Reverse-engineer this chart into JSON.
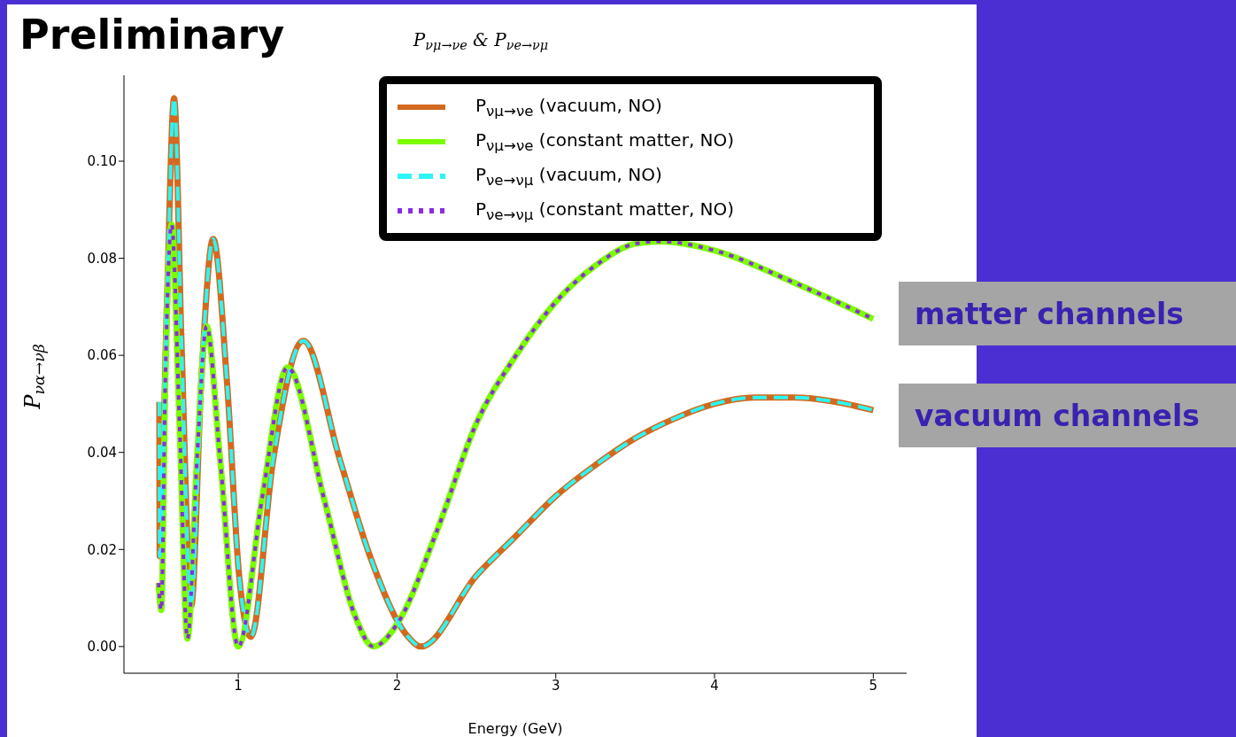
{
  "chart_data": {
    "type": "line",
    "title": "P$_{νμ→νe}$ & P$_{νe→νμ}$",
    "xlabel": "Energy (GeV)",
    "ylabel": "P$_{να→νβ}$",
    "xlim": [
      0.28,
      5.21
    ],
    "xticks": [
      1,
      2,
      3,
      4,
      5
    ],
    "ylim": [
      -0.0055,
      0.1177
    ],
    "yticks": [
      {
        "value": 0,
        "label": "0.00"
      },
      {
        "value": 0.02,
        "label": "0.02"
      },
      {
        "value": 0.04,
        "label": "0.04"
      },
      {
        "value": 0.06,
        "label": "0.06"
      },
      {
        "value": 0.08,
        "label": "0.08"
      },
      {
        "value": 0.1,
        "label": "0.10"
      }
    ],
    "grid": false,
    "legend": "top right",
    "marker": "none",
    "annotations": [
      "Preliminary",
      "matter channels",
      "vacuum channels"
    ],
    "series": [
      {
        "name": "P$_{νμ→νe}$ (vacuum, NO)",
        "color": "#d2691e",
        "line_style": "solid",
        "x": [
          0.503,
          0.505,
          0.55,
          0.596,
          0.643,
          0.704,
          0.766,
          0.842,
          0.93,
          1.005,
          1.08,
          1.22,
          1.41,
          1.64,
          1.83,
          2.07,
          2.15,
          2.5,
          2.75,
          3,
          3.25,
          3.5,
          3.75,
          4,
          4.25,
          4.5,
          4.75,
          5
        ],
        "values": [
          0.0504,
          0.0186,
          0.07,
          0.113,
          0.062,
          0.0084,
          0.054,
          0.084,
          0.054,
          0.0148,
          0.002,
          0.0385,
          0.063,
          0.0385,
          0.0186,
          0.002,
          0,
          0.0146,
          0.0228,
          0.031,
          0.0374,
          0.0429,
          0.047,
          0.05,
          0.0513,
          0.0513,
          0.0505,
          0.0487
        ]
      },
      {
        "name": "P$_{νμ→νe}$ (constant matter, NO)",
        "color": "#7cfc00",
        "line_style": "solid",
        "x": [
          0.498,
          0.515,
          0.54,
          0.58,
          0.63,
          0.68,
          0.74,
          0.8,
          0.886,
          1.0,
          1.15,
          1.31,
          1.54,
          1.73,
          1.85,
          2.0,
          2.25,
          2.5,
          2.75,
          3,
          3.25,
          3.5,
          3.65,
          4,
          4.5,
          5
        ],
        "values": [
          0.0131,
          0.0075,
          0.054,
          0.087,
          0.046,
          0.0016,
          0.0385,
          0.066,
          0.0385,
          0,
          0.0305,
          0.0575,
          0.0305,
          0.0068,
          0,
          0.0046,
          0.0237,
          0.046,
          0.06,
          0.071,
          0.0785,
          0.083,
          0.0835,
          0.0816,
          0.075,
          0.0675
        ]
      },
      {
        "name": "P$_{νe→νμ}$ (vacuum, NO)",
        "color": "#2ef5f5",
        "line_style": "dashed",
        "x": [
          0.503,
          0.505,
          0.55,
          0.596,
          0.643,
          0.704,
          0.766,
          0.842,
          0.93,
          1.005,
          1.08,
          1.22,
          1.41,
          1.64,
          1.83,
          2.07,
          2.15,
          2.5,
          2.75,
          3,
          3.25,
          3.5,
          3.75,
          4,
          4.25,
          4.5,
          4.75,
          5
        ],
        "values": [
          0.0504,
          0.0186,
          0.07,
          0.113,
          0.062,
          0.0084,
          0.054,
          0.084,
          0.054,
          0.0148,
          0.002,
          0.0385,
          0.063,
          0.0385,
          0.0186,
          0.002,
          0,
          0.0146,
          0.0228,
          0.031,
          0.0374,
          0.0429,
          0.047,
          0.05,
          0.0513,
          0.0513,
          0.0505,
          0.0487
        ]
      },
      {
        "name": "P$_{νe→νμ}$ (constant matter, NO)",
        "color": "#8a2be2",
        "line_style": "dotted",
        "x": [
          0.498,
          0.515,
          0.54,
          0.58,
          0.63,
          0.68,
          0.74,
          0.8,
          0.886,
          1.0,
          1.15,
          1.31,
          1.54,
          1.73,
          1.85,
          2.0,
          2.25,
          2.5,
          2.75,
          3,
          3.25,
          3.5,
          3.65,
          4,
          4.5,
          5
        ],
        "values": [
          0.0131,
          0.0075,
          0.054,
          0.087,
          0.046,
          0.0016,
          0.0385,
          0.066,
          0.0385,
          0,
          0.0305,
          0.0575,
          0.0305,
          0.0068,
          0,
          0.0046,
          0.0237,
          0.046,
          0.06,
          0.071,
          0.0785,
          0.083,
          0.0835,
          0.0816,
          0.075,
          0.0675
        ]
      }
    ]
  }
}
